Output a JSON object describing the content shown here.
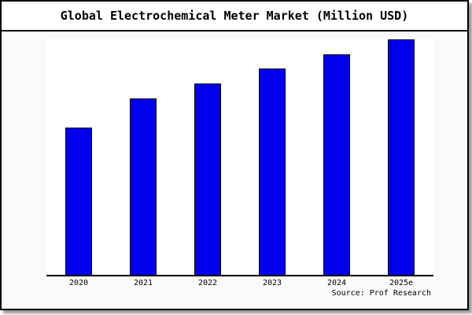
{
  "chart_data": {
    "type": "bar",
    "title": "Global Electrochemical Meter Market (Million USD)",
    "categories": [
      "2020",
      "2021",
      "2022",
      "2023",
      "2024",
      "2025e"
    ],
    "values": [
      62.3,
      74.8,
      81.1,
      87.2,
      93.2,
      99.6
    ],
    "unit_note": "y-axis is unlabeled in the image; values are relative bar heights as % of plot height (tallest bar 2025e spans nearly the full plot)",
    "xlabel": "",
    "ylabel": "",
    "ylim": [
      0,
      100
    ],
    "grid": false,
    "legend": null,
    "y_axis_ticks": [],
    "source_note": "Source: Prof Research",
    "bar_color": "#0000ee",
    "bar_border_color": "#000000"
  },
  "colors": {
    "card_background": "#fafafa",
    "plot_background": "#ffffff",
    "frame_border": "#000000",
    "shadow": "#999999",
    "text": "#000000"
  }
}
